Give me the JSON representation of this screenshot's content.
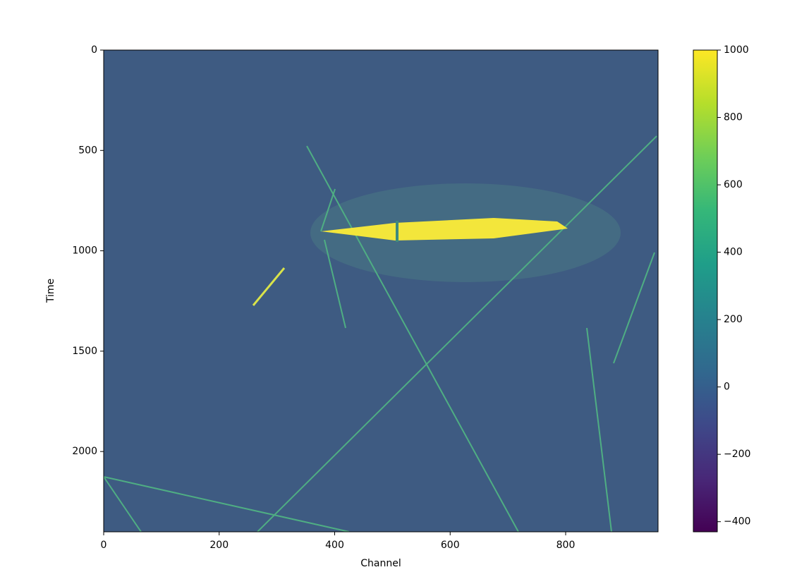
{
  "chart_data": {
    "type": "heatmap",
    "x_label": "Channel",
    "y_label": "Time",
    "xlim": [
      0,
      960
    ],
    "xticks": [
      0,
      200,
      400,
      600,
      800
    ],
    "ylim": [
      2400,
      0
    ],
    "yticks": [
      0,
      500,
      1000,
      1500,
      2000
    ],
    "colormap": "viridis",
    "clim": [
      -430,
      1000
    ],
    "cticks": [
      {
        "value": -400,
        "label": "−400"
      },
      {
        "value": -200,
        "label": "−200"
      },
      0,
      200,
      400,
      600,
      800,
      1000
    ]
  }
}
